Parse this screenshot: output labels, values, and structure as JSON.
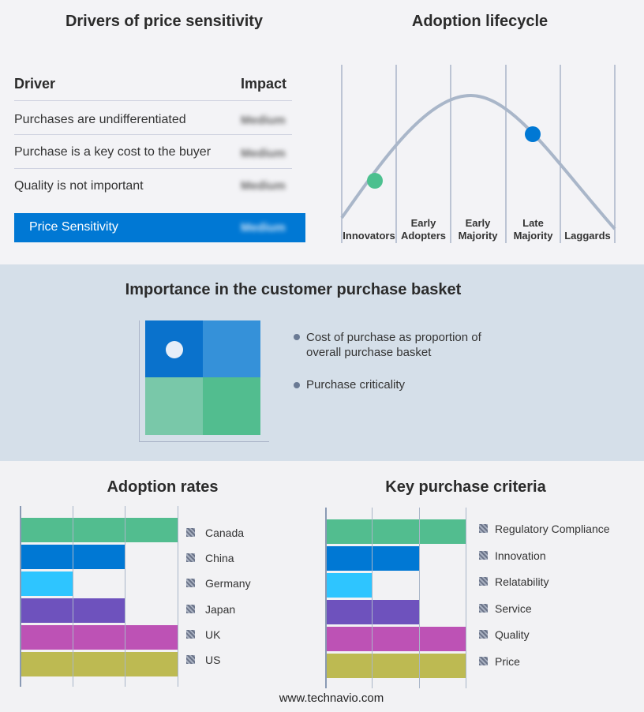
{
  "drivers": {
    "title": "Drivers of price sensitivity",
    "col_driver": "Driver",
    "col_impact": "Impact",
    "rows": [
      {
        "driver": "Purchases are undifferentiated",
        "impact": "Medium"
      },
      {
        "driver": "Purchase is a key cost to the buyer",
        "impact": "Medium"
      },
      {
        "driver": "Quality is not important",
        "impact": "Medium"
      }
    ],
    "summary": {
      "label": "Price Sensitivity",
      "impact": "Medium"
    }
  },
  "lifecycle": {
    "title": "Adoption lifecycle",
    "stages": [
      [
        "Innovators"
      ],
      [
        "Early",
        "Adopters"
      ],
      [
        "Early",
        "Majority"
      ],
      [
        "Late",
        "Majority"
      ],
      [
        "Laggards"
      ]
    ],
    "markers": [
      {
        "stage": "Innovators",
        "color": "#4cc08f"
      },
      {
        "stage": "Late Majority",
        "color": "#0078d4"
      }
    ]
  },
  "basket": {
    "title": "Importance in the customer purchase basket",
    "legend": [
      "Cost of purchase as proportion of overall purchase basket",
      "Purchase criticality"
    ],
    "quadrant_colors": [
      "#0a72cc",
      "#3591d9",
      "#79c8a9",
      "#52bd8f"
    ],
    "highlight": "top-left"
  },
  "chart_data": [
    {
      "type": "bar",
      "orientation": "horizontal",
      "title": "Adoption rates",
      "categories": [
        "Canada",
        "China",
        "Germany",
        "Japan",
        "UK",
        "US"
      ],
      "values": [
        3,
        2,
        1,
        2,
        3,
        3
      ],
      "xlim": [
        0,
        3
      ],
      "grid": true,
      "legend": "right",
      "colors": [
        "#52bd8f",
        "#0078d4",
        "#2ec5ff",
        "#6e52bd",
        "#bd52b5",
        "#bdba52"
      ]
    },
    {
      "type": "bar",
      "orientation": "horizontal",
      "title": "Key purchase criteria",
      "categories": [
        "Regulatory Compliance",
        "Innovation",
        "Relatability",
        "Service",
        "Quality",
        "Price"
      ],
      "values": [
        3,
        2,
        1,
        2,
        3,
        3
      ],
      "xlim": [
        0,
        3
      ],
      "grid": true,
      "legend": "right",
      "colors": [
        "#52bd8f",
        "#0078d4",
        "#2ec5ff",
        "#6e52bd",
        "#bd52b5",
        "#bdba52"
      ]
    }
  ],
  "footer": "www.technavio.com"
}
